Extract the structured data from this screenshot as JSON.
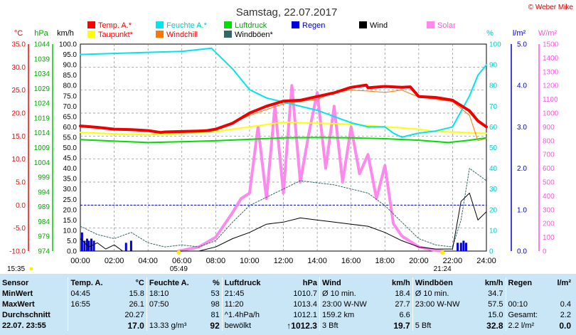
{
  "header": {
    "title": "Samstag, 22.07.2017",
    "brand": "© Weber Mike"
  },
  "legend": [
    {
      "label": "Temp. A.*",
      "color": "#ff0000",
      "text_color": "#ff0000"
    },
    {
      "label": "Feuchte A.*",
      "color": "#00e5ee",
      "text_color": "#00cccc"
    },
    {
      "label": "Luftdruck",
      "color": "#00dd00",
      "text_color": "#00aa00"
    },
    {
      "label": "Regen",
      "color": "#0000dd",
      "text_color": "#0000cc"
    },
    {
      "label": "Wind",
      "color": "#000000",
      "text_color": "#000000"
    },
    {
      "label": "Solar",
      "color": "#ff88ee",
      "text_color": "#ff55dd"
    },
    {
      "label": "Taupunkt*",
      "color": "#ffff00",
      "text_color": "#ff0000"
    },
    {
      "label": "Windchill",
      "color": "#ff7700",
      "text_color": "#ff0000"
    },
    {
      "label": "Windböen*",
      "color": "#336666",
      "text_color": "#000000"
    }
  ],
  "axes": {
    "temp": {
      "unit": "°C",
      "color": "#ff0000",
      "ticks": [
        "35.0",
        "30.0",
        "25.0",
        "20.0",
        "15.0",
        "10.0",
        "5.0",
        "0.0",
        "-5.0",
        "-10.0"
      ]
    },
    "pressure": {
      "unit": "hPa",
      "color": "#00aa00",
      "ticks": [
        "1044",
        "1039",
        "1034",
        "1029",
        "1024",
        "1019",
        "1014",
        "1009",
        "1004",
        "999",
        "994",
        "989",
        "984",
        "979",
        "974"
      ]
    },
    "wind": {
      "unit": "km/h",
      "color": "#000000",
      "ticks": [
        "100.0",
        "95.0",
        "90.0",
        "85.0",
        "80.0",
        "75.0",
        "70.0",
        "65.0",
        "60.0",
        "55.0",
        "50.0",
        "45.0",
        "40.0",
        "35.0",
        "30.0",
        "25.0",
        "20.0",
        "15.0",
        "10.0",
        "5.0",
        "0.0"
      ]
    },
    "humidity": {
      "unit": "%",
      "color": "#00cccc",
      "ticks": [
        "100",
        "90",
        "80",
        "70",
        "60",
        "50",
        "40",
        "30",
        "20",
        "10",
        "0"
      ]
    },
    "rain": {
      "unit": "l/m²",
      "color": "#0000cc",
      "ticks": [
        "5.0",
        "4.0",
        "3.0",
        "2.0",
        "1.0",
        "0.0"
      ]
    },
    "solar": {
      "unit": "W/m²",
      "color": "#ff55dd",
      "ticks": [
        "1500",
        "1400",
        "1300",
        "1200",
        "1100",
        "1000",
        "900",
        "800",
        "700",
        "600",
        "500",
        "400",
        "300",
        "200",
        "100",
        "0"
      ]
    },
    "x_ticks": [
      "00:00",
      "02:00",
      "04:00",
      "06:00",
      "08:00",
      "10:00",
      "12:00",
      "14:00",
      "16:00",
      "18:00",
      "20:00",
      "22:00",
      "24:00"
    ]
  },
  "sun": {
    "sunrise": "05:49",
    "sunset": "21:24",
    "now": "15:35"
  },
  "chart_data": {
    "type": "line",
    "x_unit": "hour",
    "series": [
      {
        "name": "Temp. A.*",
        "axis": "temp",
        "color": "#ee0000",
        "width": 4,
        "x": [
          0,
          1,
          2,
          3,
          4,
          4.75,
          5,
          6,
          7,
          7.5,
          8,
          9,
          10,
          11,
          12,
          13,
          14,
          15,
          16,
          16.9,
          17,
          18,
          19,
          19.5,
          20,
          21,
          22,
          23,
          23.5,
          24
        ],
        "y": [
          17.2,
          16.9,
          16.5,
          16.4,
          16.2,
          15.8,
          15.9,
          16.0,
          16.1,
          16.2,
          16.5,
          17.8,
          20.0,
          21.5,
          22.6,
          22.8,
          23.6,
          24.4,
          25.6,
          26.1,
          25.5,
          25.8,
          25.6,
          25.7,
          23.6,
          23.4,
          22.8,
          20.5,
          18.3,
          17.0
        ]
      },
      {
        "name": "Taupunkt*",
        "axis": "temp",
        "color": "#ffff00",
        "width": 2,
        "x": [
          0,
          2,
          4,
          6,
          8,
          10,
          12,
          14,
          16,
          18,
          19,
          20,
          21,
          22,
          23,
          24
        ],
        "y": [
          15.8,
          15.5,
          15.3,
          15.6,
          16.0,
          17.0,
          18.0,
          17.8,
          17.6,
          17.0,
          16.8,
          16.5,
          16.0,
          15.9,
          15.7,
          15.6
        ]
      },
      {
        "name": "Windchill",
        "axis": "temp",
        "color": "#ff7700",
        "width": 1,
        "x": [
          0,
          2,
          4,
          6,
          8,
          10,
          12,
          13,
          14,
          15,
          16,
          17,
          18,
          19,
          20,
          21,
          22,
          23,
          23.5,
          24
        ],
        "y": [
          17.0,
          16.4,
          16.0,
          15.9,
          16.3,
          19.5,
          22.0,
          22.5,
          23.0,
          24.5,
          25.0,
          24.8,
          24.5,
          25.0,
          23.5,
          23.0,
          22.5,
          19.5,
          14.0,
          14.5
        ]
      },
      {
        "name": "Feuchte A.*",
        "axis": "humidity",
        "color": "#00e5ee",
        "width": 2,
        "x": [
          0,
          2,
          4,
          6,
          7.75,
          9,
          10,
          11,
          12,
          13,
          14,
          15,
          16,
          17,
          18,
          18.5,
          19,
          20,
          21,
          22,
          23,
          23.5,
          24
        ],
        "y": [
          95,
          95.5,
          96,
          96.5,
          98,
          88,
          78,
          74,
          72,
          70,
          68,
          65,
          62,
          60,
          60,
          57,
          55,
          57,
          58,
          60,
          75,
          85,
          90
        ]
      },
      {
        "name": "Luftdruck",
        "axis": "pressure",
        "color": "#00dd00",
        "width": 2,
        "x": [
          0,
          2,
          4,
          6,
          8,
          10,
          12,
          14,
          16,
          18,
          20,
          21.75,
          23,
          24
        ],
        "y": [
          1011.7,
          1011.2,
          1010.7,
          1011.0,
          1011.3,
          1011.8,
          1012.3,
          1012.4,
          1012.3,
          1012.0,
          1011.5,
          1010.7,
          1011.5,
          1012.3
        ]
      },
      {
        "name": "Windböen*",
        "axis": "wind",
        "color": "#336666",
        "width": 1,
        "dash": "2,2",
        "x": [
          0,
          1,
          2,
          3,
          4,
          5,
          6,
          7,
          8,
          9,
          10,
          11,
          12,
          13,
          14,
          15,
          16,
          17,
          18,
          19,
          20,
          21,
          22,
          22.5,
          23,
          24
        ],
        "y": [
          12,
          8,
          6,
          9,
          4,
          2,
          3,
          2,
          5,
          14,
          22,
          26,
          30,
          34,
          33,
          32,
          30,
          28,
          22,
          14,
          6,
          3,
          2,
          15,
          40,
          34
        ]
      },
      {
        "name": "Wind",
        "axis": "wind",
        "color": "#000000",
        "width": 1,
        "x": [
          0,
          0.5,
          1,
          1.5,
          2,
          2.5,
          3,
          4,
          5,
          6,
          7,
          8,
          9,
          10,
          11,
          12,
          13,
          14,
          15,
          16,
          17,
          18,
          19,
          20,
          21,
          22,
          22.5,
          23,
          23.5,
          24
        ],
        "y": [
          6,
          2,
          4,
          1,
          3,
          0,
          0,
          0,
          0,
          0,
          0,
          2,
          6,
          9,
          13,
          14,
          16,
          15,
          14,
          13,
          12,
          9,
          5,
          2,
          1,
          1,
          24,
          28,
          15,
          19
        ]
      },
      {
        "name": "Solar",
        "axis": "solar",
        "color": "#ff88ee",
        "width": 4,
        "x": [
          5.8,
          7,
          8,
          9,
          9.5,
          10,
          10.5,
          11,
          11.5,
          12,
          12.5,
          13,
          13.5,
          14,
          14.5,
          15,
          15.5,
          16,
          16.5,
          17,
          17.5,
          18,
          18.5,
          19,
          20,
          21,
          21.4
        ],
        "y": [
          0,
          30,
          100,
          280,
          380,
          420,
          900,
          380,
          1050,
          420,
          1200,
          500,
          850,
          1150,
          600,
          1050,
          500,
          900,
          560,
          700,
          380,
          620,
          200,
          110,
          30,
          5,
          0
        ]
      }
    ],
    "rain_bars": {
      "x": [
        0.1,
        0.25,
        0.4,
        0.5,
        0.65,
        0.8,
        2.7,
        3.0,
        22.3,
        22.5,
        22.65,
        22.8
      ],
      "y": [
        0.45,
        0.25,
        0.3,
        0.25,
        0.3,
        0.25,
        0.2,
        0.25,
        0.2,
        0.2,
        0.25,
        0.2
      ]
    }
  },
  "stats": {
    "headers": {
      "sensor": "Sensor",
      "temp": "Temp. A.",
      "temp_unit": "°C",
      "hum": "Feuchte A.",
      "hum_unit": "%",
      "press": "Luftdruck",
      "press_unit": "hPa",
      "wind": "Wind",
      "wind_unit": "km/h",
      "gust": "Windböen",
      "gust_unit": "km/h",
      "rain": "Regen",
      "rain_unit": "l/m²"
    },
    "rows": [
      {
        "label": "MinWert",
        "c": [
          "04:45",
          "15.8",
          "18:10",
          "53",
          "21:45",
          "1010.7",
          "Ø 10 min.",
          "18.4",
          "Ø 10 min.",
          "34.7",
          "",
          ""
        ]
      },
      {
        "label": "MaxWert",
        "c": [
          "16:55",
          "26.1",
          "07:50",
          "98",
          "11:20",
          "1013.4",
          "23:00   W-NW",
          "27.7",
          "23:00   W-NW",
          "57.5",
          "00:10",
          "0.4"
        ]
      },
      {
        "label": "Durchschnitt",
        "c": [
          "",
          "20.27",
          "",
          "81",
          "^1.4hPa/h",
          "1012.1",
          "159.2 km",
          "6.6",
          "",
          "15.0",
          "Gesamt:",
          "2.2"
        ]
      },
      {
        "label": "22.07. 23:55",
        "c": [
          "",
          "17.0",
          "13.33 g/m³",
          "92",
          "bewölkt",
          "↑1012.3",
          "3 Bft",
          "19.7",
          "5 Bft",
          "32.8",
          "2.2 l/m²",
          "0.0"
        ]
      }
    ]
  }
}
